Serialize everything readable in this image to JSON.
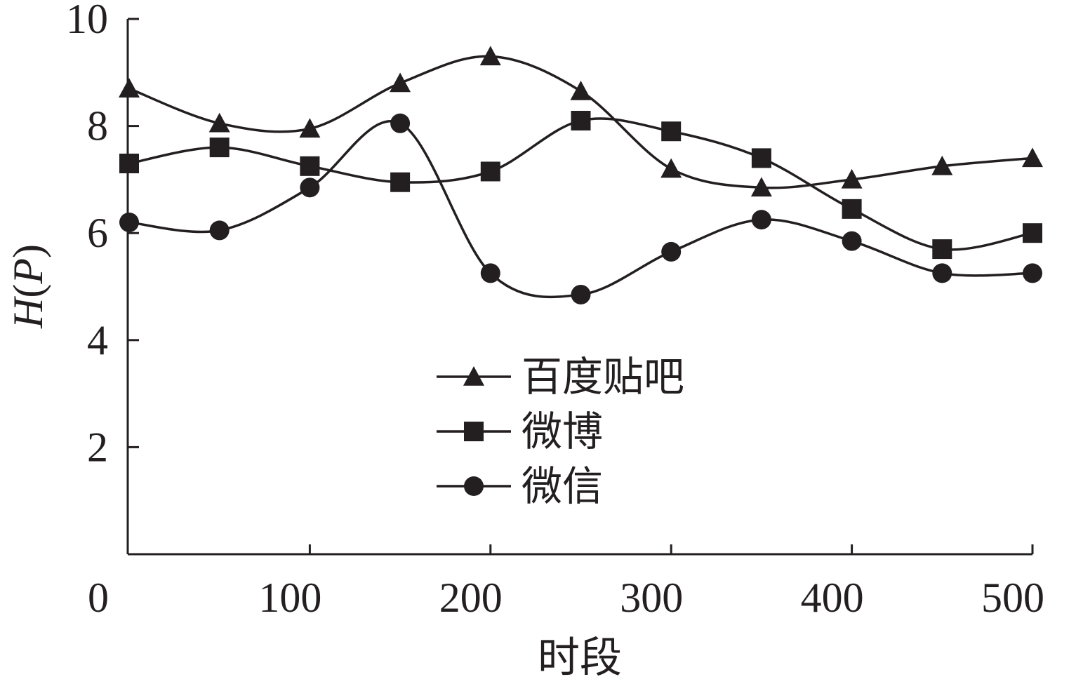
{
  "chart_data": {
    "type": "line",
    "xlabel": "时段",
    "ylabel_main": "H",
    "ylabel_open": "(",
    "ylabel_var": "P",
    "ylabel_close": ")",
    "xlim": [
      0,
      500
    ],
    "ylim": [
      0,
      10
    ],
    "x_ticks": [
      {
        "value": 0,
        "label": "0"
      },
      {
        "value": 100,
        "label": "100"
      },
      {
        "value": 200,
        "label": "200"
      },
      {
        "value": 300,
        "label": "300"
      },
      {
        "value": 400,
        "label": "400"
      },
      {
        "value": 500,
        "label": "500"
      }
    ],
    "y_ticks": [
      {
        "value": 2,
        "label": "2"
      },
      {
        "value": 4,
        "label": "4"
      },
      {
        "value": 6,
        "label": "6"
      },
      {
        "value": 8,
        "label": "8"
      },
      {
        "value": 10,
        "label": "10"
      }
    ],
    "x": [
      0,
      50,
      100,
      150,
      200,
      250,
      300,
      350,
      400,
      450,
      500
    ],
    "grid": false,
    "legend_position": "center",
    "smooth": true,
    "series": [
      {
        "name": "百度贴吧",
        "marker": "triangle",
        "values": [
          8.7,
          8.05,
          7.95,
          8.8,
          9.3,
          8.65,
          7.2,
          6.85,
          7.0,
          7.25,
          7.4
        ]
      },
      {
        "name": "微博",
        "marker": "square",
        "values": [
          7.3,
          7.6,
          7.25,
          6.95,
          7.15,
          8.1,
          7.9,
          7.4,
          6.45,
          5.7,
          6.0
        ]
      },
      {
        "name": "微信",
        "marker": "circle",
        "values": [
          6.2,
          6.05,
          6.85,
          8.05,
          5.25,
          4.85,
          5.65,
          6.25,
          5.85,
          5.25,
          5.25
        ]
      }
    ]
  }
}
